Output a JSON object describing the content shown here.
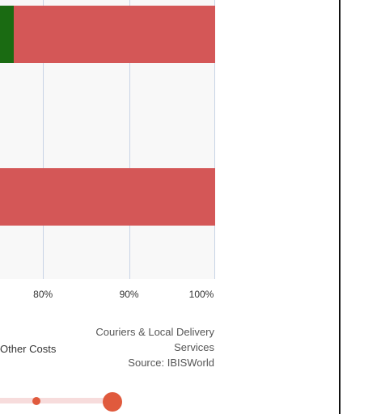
{
  "chart_data": {
    "type": "bar",
    "orientation": "horizontal",
    "stacked": true,
    "x_axis": {
      "ticks": [
        "80%",
        "90%",
        "100%"
      ],
      "tick_values": [
        80,
        90,
        100
      ],
      "visible_range": [
        75,
        100
      ]
    },
    "bars": [
      {
        "segments": [
          {
            "series": "green-segment",
            "start": 75,
            "end": 76.6,
            "color": "#1a6b12"
          },
          {
            "series": "Other Costs",
            "start": 76.6,
            "end": 100,
            "color": "#d45757"
          }
        ]
      },
      {
        "segments": [
          {
            "series": "Other Costs",
            "start": 75,
            "end": 100,
            "color": "#d45757"
          }
        ]
      }
    ],
    "legend": [
      "Other Costs"
    ],
    "grid": true
  },
  "legend": {
    "other_costs_label": "Other Costs"
  },
  "source": {
    "industry_line1": "Couriers & Local Delivery",
    "industry_line2": "Services",
    "source_line": "Source: IBISWorld"
  },
  "slider": {
    "value": 1.0
  },
  "colors": {
    "other_costs": "#d45757",
    "green_segment": "#1a6b12",
    "gridline": "#c8d4e6",
    "slider_accent": "#e05a3d",
    "slider_track": "#f7dcdc"
  }
}
